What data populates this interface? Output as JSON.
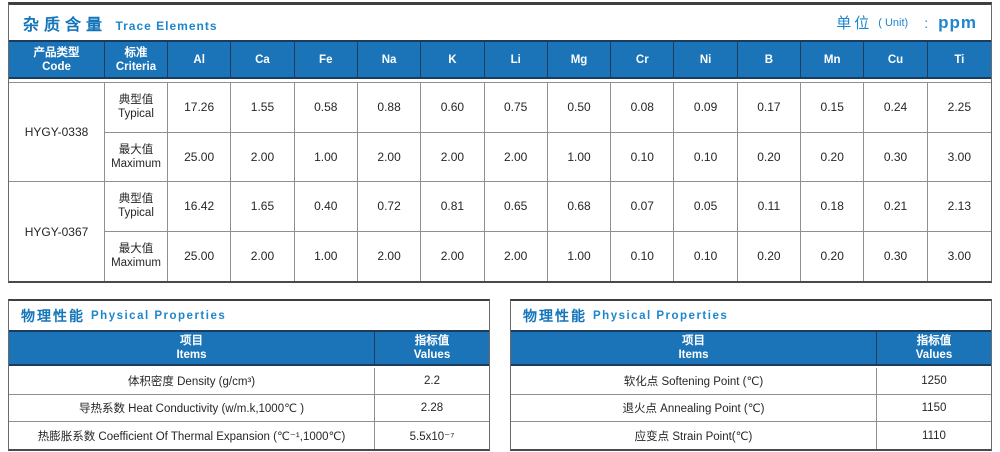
{
  "colors": {
    "accent_blue": "#1b74b8",
    "title_blue": "#1e86cc",
    "header_separator_navy": "#1c3c5e",
    "grid_gray": "#8f8f8f",
    "outer_border_dark": "#3f3f3f",
    "text_dark": "#262626"
  },
  "trace": {
    "title_zh": "杂质含量",
    "title_en": "Trace Elements",
    "unit_zh": "单位",
    "unit_en": "( Unit)",
    "unit_colon": ":",
    "unit_value": "ppm",
    "col_code_zh": "产品类型",
    "col_code_en": "Code",
    "col_criteria_zh": "标准",
    "col_criteria_en": "Criteria",
    "elements": [
      "Al",
      "Ca",
      "Fe",
      "Na",
      "K",
      "Li",
      "Mg",
      "Cr",
      "Ni",
      "B",
      "Mn",
      "Cu",
      "Ti"
    ],
    "codes": [
      "HYGY-0338",
      "HYGY-0367"
    ],
    "rows": [
      {
        "criteria_zh": "典型值",
        "criteria_en": "Typical",
        "values": [
          "17.26",
          "1.55",
          "0.58",
          "0.88",
          "0.60",
          "0.75",
          "0.50",
          "0.08",
          "0.09",
          "0.17",
          "0.15",
          "0.24",
          "2.25"
        ]
      },
      {
        "criteria_zh": "最大值",
        "criteria_en": "Maximum",
        "values": [
          "25.00",
          "2.00",
          "1.00",
          "2.00",
          "2.00",
          "2.00",
          "1.00",
          "0.10",
          "0.10",
          "0.20",
          "0.20",
          "0.30",
          "3.00"
        ]
      },
      {
        "criteria_zh": "典型值",
        "criteria_en": "Typical",
        "values": [
          "16.42",
          "1.65",
          "0.40",
          "0.72",
          "0.81",
          "0.65",
          "0.68",
          "0.07",
          "0.05",
          "0.11",
          "0.18",
          "0.21",
          "2.13"
        ]
      },
      {
        "criteria_zh": "最大值",
        "criteria_en": "Maximum",
        "values": [
          "25.00",
          "2.00",
          "1.00",
          "2.00",
          "2.00",
          "2.00",
          "1.00",
          "0.10",
          "0.10",
          "0.20",
          "0.20",
          "0.30",
          "3.00"
        ]
      }
    ]
  },
  "physical_left": {
    "title_zh": "物理性能",
    "title_en": "Physical Properties",
    "col_item_zh": "项目",
    "col_item_en": "Items",
    "col_value_zh": "指标值",
    "col_value_en": "Values",
    "rows": [
      {
        "item": "体积密度 Density (g/cm³)",
        "value": "2.2"
      },
      {
        "item": "导热系数 Heat Conductivity (w/m.k,1000℃ )",
        "value": "2.28"
      },
      {
        "item": "热膨胀系数 Coefficient Of Thermal Expansion (℃⁻¹,1000℃)",
        "value": "5.5x10⁻⁷"
      }
    ]
  },
  "physical_right": {
    "title_zh": "物理性能",
    "title_en": "Physical Properties",
    "col_item_zh": "项目",
    "col_item_en": "Items",
    "col_value_zh": "指标值",
    "col_value_en": "Values",
    "rows": [
      {
        "item": "软化点 Softening Point (℃)",
        "value": "1250"
      },
      {
        "item": "退火点 Annealing Point (℃)",
        "value": "1150"
      },
      {
        "item": "应变点 Strain Point(℃)",
        "value": "1110"
      }
    ]
  }
}
